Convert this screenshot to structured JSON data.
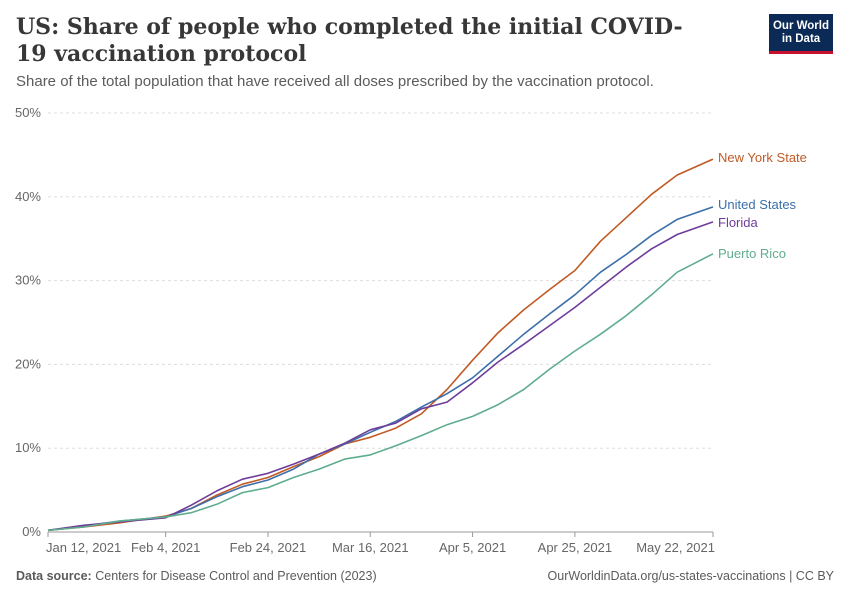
{
  "header": {
    "title": "US: Share of people who completed the initial COVID-19 vaccination protocol",
    "subtitle": "Share of the total population that have received all doses prescribed by the vaccination protocol.",
    "logo_line1": "Our World",
    "logo_line2": "in Data"
  },
  "footer": {
    "source_label": "Data source:",
    "source_text": "Centers for Disease Control and Prevention (2023)",
    "url": "OurWorldinData.org/us-states-vaccinations | CC BY"
  },
  "colors": {
    "New York State": "#c15a25",
    "United States": "#3c6fa8",
    "Florida": "#6e3d9c",
    "Puerto Rico": "#5fad8e"
  },
  "chart_data": {
    "type": "line",
    "title": "US: Share of people who completed the initial COVID-19 vaccination protocol",
    "ylabel": "",
    "xlabel": "",
    "ylim": [
      0,
      50
    ],
    "yticks": [
      "0%",
      "10%",
      "20%",
      "30%",
      "40%",
      "50%"
    ],
    "xticks": [
      "Jan 12, 2021",
      "Feb 4, 2021",
      "Feb 24, 2021",
      "Mar 16, 2021",
      "Apr 5, 2021",
      "Apr 25, 2021",
      "May 22, 2021"
    ],
    "grid": "horizontal dashed",
    "legend": "line-end labels",
    "x": [
      "2021-01-12",
      "2021-01-19",
      "2021-01-26",
      "2021-02-04",
      "2021-02-09",
      "2021-02-14",
      "2021-02-19",
      "2021-02-24",
      "2021-03-01",
      "2021-03-06",
      "2021-03-11",
      "2021-03-16",
      "2021-03-21",
      "2021-03-26",
      "2021-03-31",
      "2021-04-05",
      "2021-04-10",
      "2021-04-15",
      "2021-04-20",
      "2021-04-25",
      "2021-04-30",
      "2021-05-05",
      "2021-05-10",
      "2021-05-15",
      "2021-05-22"
    ],
    "series": [
      {
        "name": "New York State",
        "values": [
          0.2,
          0.6,
          1.1,
          1.9,
          2.8,
          4.4,
          5.7,
          6.5,
          7.8,
          9.0,
          10.5,
          11.3,
          12.4,
          14.1,
          17.0,
          20.5,
          23.8,
          26.5,
          28.9,
          31.2,
          34.7,
          37.5,
          40.3,
          42.6,
          44.5
        ]
      },
      {
        "name": "United States",
        "values": [
          0.2,
          0.7,
          1.3,
          1.8,
          2.8,
          4.2,
          5.4,
          6.2,
          7.5,
          9.3,
          10.5,
          11.9,
          13.2,
          14.9,
          16.5,
          18.4,
          21.0,
          23.6,
          26.0,
          28.3,
          31.0,
          33.1,
          35.4,
          37.3,
          38.8
        ]
      },
      {
        "name": "Florida",
        "values": [
          0.2,
          0.8,
          1.2,
          1.7,
          3.2,
          4.9,
          6.3,
          7.0,
          8.1,
          9.3,
          10.6,
          12.2,
          13.0,
          14.7,
          15.5,
          17.8,
          20.3,
          22.4,
          24.6,
          26.8,
          29.2,
          31.6,
          33.8,
          35.5,
          37.0
        ]
      },
      {
        "name": "Puerto Rico",
        "values": [
          0.2,
          0.6,
          1.3,
          1.8,
          2.3,
          3.3,
          4.7,
          5.3,
          6.5,
          7.5,
          8.7,
          9.2,
          10.3,
          11.5,
          12.8,
          13.8,
          15.2,
          17.0,
          19.4,
          21.6,
          23.6,
          25.8,
          28.3,
          31.0,
          33.2
        ]
      }
    ]
  }
}
